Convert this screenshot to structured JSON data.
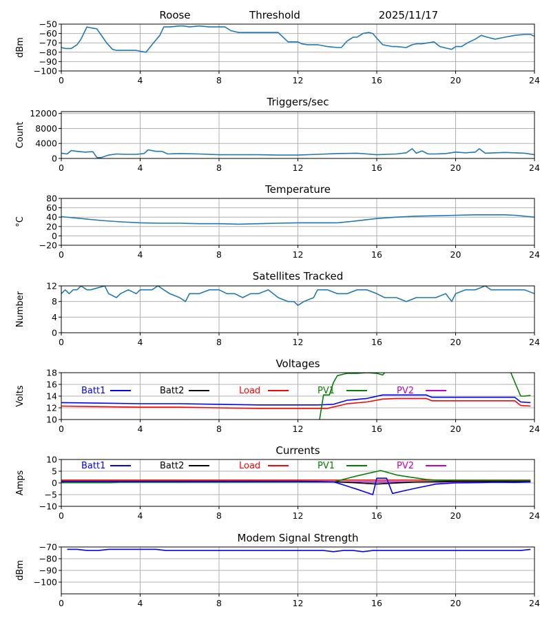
{
  "header": {
    "station": "Roose",
    "mode": "Threshold",
    "date": "2025/11/17"
  },
  "chart_data": [
    {
      "id": "signal",
      "type": "line",
      "title": "",
      "xlabel": "",
      "ylabel": "dBm",
      "xlim": [
        0,
        24
      ],
      "ylim": [
        -100,
        -50
      ],
      "xticks": [
        "0",
        "4",
        "8",
        "12",
        "16",
        "20",
        "24"
      ],
      "yticks": [
        "−50",
        "−60",
        "−70",
        "−80",
        "−90",
        "−100"
      ],
      "ytick_values": [
        -50,
        -60,
        -70,
        -80,
        -90,
        -100
      ],
      "grid": true,
      "series": [
        {
          "name": "signal",
          "color": "#1f77b4",
          "x": [
            0,
            0.2,
            0.5,
            0.8,
            1.0,
            1.3,
            1.5,
            1.8,
            2.0,
            2.3,
            2.6,
            2.8,
            3.0,
            3.5,
            3.8,
            4.0,
            4.3,
            4.6,
            5.0,
            5.2,
            5.5,
            6.0,
            6.2,
            6.5,
            7.0,
            7.5,
            8.0,
            8.3,
            8.6,
            8.8,
            9.0,
            10.0,
            11.0,
            11.3,
            11.5,
            12.0,
            12.2,
            12.5,
            13.0,
            13.5,
            14.0,
            14.2,
            14.5,
            14.8,
            15.0,
            15.3,
            15.6,
            15.8,
            16.0,
            16.3,
            16.8,
            17.0,
            17.5,
            17.8,
            18.0,
            18.3,
            18.6,
            18.9,
            19.2,
            19.6,
            19.8,
            20.0,
            20.3,
            20.6,
            21.0,
            21.3,
            21.6,
            22.0,
            22.5,
            23.0,
            23.5,
            23.8,
            24.0
          ],
          "y": [
            -75,
            -76,
            -76,
            -72,
            -66,
            -53,
            -54,
            -55,
            -61,
            -70,
            -77,
            -78,
            -78,
            -78,
            -78,
            -79,
            -80,
            -72,
            -62,
            -53,
            -53,
            -52,
            -52,
            -53,
            -52,
            -53,
            -53,
            -53,
            -57,
            -58,
            -59,
            -59,
            -59,
            -65,
            -69,
            -69,
            -71,
            -72,
            -72,
            -74,
            -75,
            -75,
            -68,
            -64,
            -64,
            -60,
            -59,
            -60,
            -65,
            -72,
            -74,
            -74,
            -75,
            -72,
            -71,
            -71,
            -70,
            -69,
            -74,
            -76,
            -77,
            -74,
            -74,
            -70,
            -66,
            -62,
            -64,
            -66,
            -64,
            -62,
            -61,
            -61,
            -63
          ]
        }
      ]
    },
    {
      "id": "triggers",
      "type": "line",
      "title": "Triggers/sec",
      "xlabel": "",
      "ylabel": "Count",
      "xlim": [
        0,
        24
      ],
      "ylim": [
        0,
        12500
      ],
      "xticks": [
        "0",
        "4",
        "8",
        "12",
        "16",
        "20",
        "24"
      ],
      "yticks": [
        "12000",
        "8000",
        "4000",
        "0"
      ],
      "ytick_values": [
        12000,
        8000,
        4000,
        0
      ],
      "grid": true,
      "series": [
        {
          "name": "triggers",
          "color": "#1f77b4",
          "x": [
            0,
            0.3,
            0.5,
            0.8,
            1.2,
            1.6,
            1.8,
            2.0,
            2.4,
            2.8,
            3.2,
            3.8,
            4.2,
            4.4,
            4.8,
            5.1,
            5.4,
            6.0,
            7.0,
            8.0,
            9.0,
            10.0,
            11.0,
            12.0,
            13.0,
            14.0,
            15.0,
            15.5,
            16.0,
            16.5,
            17.0,
            17.5,
            17.8,
            18.0,
            18.3,
            18.6,
            19.0,
            19.5,
            20.0,
            20.5,
            21.0,
            21.2,
            21.5,
            22.0,
            22.5,
            23.0,
            23.5,
            24.0
          ],
          "y": [
            1400,
            1200,
            2100,
            1900,
            1700,
            1800,
            300,
            200,
            900,
            1200,
            1100,
            1100,
            1300,
            2300,
            1900,
            1900,
            1200,
            1300,
            1200,
            1000,
            1000,
            1000,
            900,
            900,
            1100,
            1300,
            1400,
            1200,
            1000,
            1100,
            1200,
            1500,
            2600,
            1400,
            2000,
            1200,
            1200,
            1300,
            1700,
            1500,
            1700,
            2600,
            1400,
            1500,
            1600,
            1500,
            1400,
            1000
          ]
        }
      ]
    },
    {
      "id": "temperature",
      "type": "line",
      "title": "Temperature",
      "xlabel": "",
      "ylabel": "°C",
      "xlim": [
        0,
        24
      ],
      "ylim": [
        -20,
        80
      ],
      "xticks": [
        "0",
        "4",
        "8",
        "12",
        "16",
        "20",
        "24"
      ],
      "yticks": [
        "80",
        "60",
        "40",
        "20",
        "0",
        "−20"
      ],
      "ytick_values": [
        80,
        60,
        40,
        20,
        0,
        -20
      ],
      "grid": true,
      "series": [
        {
          "name": "temperature",
          "color": "#1f77b4",
          "x": [
            0,
            1,
            2,
            3,
            4,
            5,
            6,
            7,
            8,
            9,
            10,
            11,
            12,
            13,
            14,
            15,
            16,
            17,
            18,
            19,
            20,
            21,
            22,
            22.5,
            23,
            24
          ],
          "y": [
            41,
            37,
            33,
            30,
            28,
            27,
            27,
            26,
            26,
            25,
            26,
            27,
            28,
            28,
            28,
            32,
            37,
            40,
            42,
            43,
            44,
            45,
            45,
            45,
            44,
            40
          ]
        }
      ]
    },
    {
      "id": "satellites",
      "type": "line",
      "title": "Satellites Tracked",
      "xlabel": "",
      "ylabel": "Number",
      "xlim": [
        0,
        24
      ],
      "ylim": [
        0,
        12
      ],
      "xticks": [
        "0",
        "4",
        "8",
        "12",
        "16",
        "20",
        "24"
      ],
      "yticks": [
        "12",
        "8",
        "4",
        "0"
      ],
      "ytick_values": [
        12,
        8,
        4,
        0
      ],
      "grid": true,
      "series": [
        {
          "name": "satellites",
          "color": "#1f77b4",
          "x": [
            0,
            0.2,
            0.4,
            0.6,
            0.8,
            1.0,
            1.3,
            1.5,
            2.2,
            2.4,
            2.8,
            3.0,
            3.4,
            3.8,
            4.0,
            4.6,
            4.9,
            5.2,
            5.5,
            6.0,
            6.3,
            6.5,
            7.0,
            7.5,
            8.0,
            8.4,
            8.8,
            9.2,
            9.6,
            10.0,
            10.5,
            11.0,
            11.5,
            11.8,
            12.0,
            12.3,
            12.8,
            13.0,
            13.5,
            14.0,
            14.5,
            15.0,
            15.5,
            16.0,
            16.4,
            17.0,
            17.5,
            18.0,
            18.5,
            19.0,
            19.5,
            19.8,
            20.0,
            20.5,
            21.0,
            21.5,
            21.8,
            22.2,
            22.5,
            23.0,
            23.5,
            24.0
          ],
          "y": [
            10,
            11,
            10,
            11,
            11,
            12,
            11,
            11,
            12,
            10,
            9,
            10,
            11,
            10,
            11,
            11,
            12,
            11,
            10,
            9,
            8,
            10,
            10,
            11,
            11,
            10,
            10,
            9,
            10,
            10,
            11,
            9,
            8,
            8,
            7,
            8,
            9,
            11,
            11,
            10,
            10,
            11,
            11,
            10,
            9,
            9,
            8,
            9,
            9,
            9,
            10,
            8,
            10,
            11,
            11,
            12,
            11,
            11,
            11,
            11,
            11,
            10
          ]
        }
      ]
    },
    {
      "id": "voltages",
      "type": "line",
      "title": "Voltages",
      "xlabel": "",
      "ylabel": "Volts",
      "xlim": [
        0,
        24
      ],
      "ylim": [
        10,
        18
      ],
      "xticks": [
        "0",
        "4",
        "8",
        "12",
        "16",
        "20",
        "24"
      ],
      "yticks": [
        "18",
        "16",
        "14",
        "12",
        "10"
      ],
      "ytick_values": [
        18,
        16,
        14,
        12,
        10
      ],
      "grid": true,
      "legend": [
        "Batt1",
        "Batt2",
        "Load",
        "PV1",
        "PV2"
      ],
      "series": [
        {
          "name": "Batt1",
          "color": "#0000ff",
          "x": [
            0,
            2,
            4,
            6,
            8,
            10,
            12,
            13,
            13.8,
            14.5,
            15.5,
            16.3,
            17,
            18,
            18.5,
            18.8,
            20,
            22,
            23,
            23.3,
            23.8
          ],
          "y": [
            12.9,
            12.8,
            12.7,
            12.7,
            12.6,
            12.5,
            12.5,
            12.5,
            12.6,
            13.3,
            13.6,
            14.2,
            14.2,
            14.2,
            14.2,
            13.8,
            13.8,
            13.8,
            13.8,
            13.0,
            12.9
          ]
        },
        {
          "name": "Load",
          "color": "#ff0000",
          "x": [
            0,
            2,
            4,
            6,
            8,
            10,
            12,
            13.5,
            14.5,
            15.5,
            16.3,
            17,
            18,
            18.5,
            18.8,
            20,
            22,
            23,
            23.3,
            23.8
          ],
          "y": [
            12.3,
            12.2,
            12.1,
            12.1,
            12.0,
            11.9,
            11.9,
            11.9,
            12.7,
            13.0,
            13.5,
            13.6,
            13.6,
            13.6,
            13.2,
            13.2,
            13.2,
            13.2,
            12.4,
            12.3
          ]
        },
        {
          "name": "PV1",
          "color": "#008000",
          "x": [
            13.1,
            13.3,
            13.6,
            13.8,
            14.0,
            14.5,
            15.0,
            15.5,
            16.0,
            16.3,
            16.4
          ],
          "y": [
            10.0,
            14.2,
            14.2,
            16.3,
            17.5,
            17.9,
            17.9,
            18.0,
            17.9,
            17.6,
            18.0
          ]
        },
        {
          "name": "PV1",
          "color": "#008000",
          "x": [
            22.8,
            23.3,
            23.5,
            23.8
          ],
          "y": [
            18.0,
            14.0,
            14.0,
            14.1
          ]
        }
      ]
    },
    {
      "id": "currents",
      "type": "line",
      "title": "Currents",
      "xlabel": "",
      "ylabel": "Amps",
      "xlim": [
        0,
        24
      ],
      "ylim": [
        -10,
        10
      ],
      "xticks": [
        "0",
        "4",
        "8",
        "12",
        "16",
        "20",
        "24"
      ],
      "yticks": [
        "10",
        "5",
        "0",
        "−5",
        "−10"
      ],
      "ytick_values": [
        10,
        5,
        0,
        -5,
        -10
      ],
      "grid": true,
      "legend": [
        "Batt1",
        "Batt2",
        "Load",
        "PV1",
        "PV2"
      ],
      "series": [
        {
          "name": "PV2",
          "color": "#bf00bf",
          "x": [
            0,
            4,
            8,
            12,
            16,
            20,
            23.8
          ],
          "y": [
            0.4,
            0.4,
            0.4,
            0.4,
            0.4,
            0.4,
            0.4
          ]
        },
        {
          "name": "Batt2",
          "color": "#000000",
          "x": [
            0,
            4,
            8,
            12,
            14,
            16,
            18,
            20,
            23.8
          ],
          "y": [
            0.7,
            0.7,
            0.7,
            0.7,
            0.5,
            -0.5,
            0.4,
            0.7,
            0.7
          ]
        },
        {
          "name": "Load",
          "color": "#ff0000",
          "x": [
            0,
            4,
            8,
            12,
            16,
            20,
            23.8
          ],
          "y": [
            1.2,
            1.2,
            1.2,
            1.2,
            1.2,
            1.2,
            1.2
          ]
        },
        {
          "name": "PV1",
          "color": "#008000",
          "x": [
            0,
            2.5,
            3,
            13.8,
            15,
            16.2,
            17,
            17.6,
            18.5,
            19,
            20,
            23.8
          ],
          "y": [
            0.1,
            0.1,
            0.3,
            0.4,
            3.0,
            5.3,
            3.4,
            2.6,
            1.5,
            1.2,
            1.1,
            1.0
          ]
        },
        {
          "name": "Batt1",
          "color": "#0000ff",
          "x": [
            0,
            4,
            8,
            12,
            13.8,
            15.0,
            15.8,
            16.0,
            16.5,
            16.8,
            17.2,
            18,
            19,
            20,
            21,
            22,
            23,
            23.8
          ],
          "y": [
            0.6,
            0.6,
            0.6,
            0.6,
            0.5,
            -2.7,
            -5.0,
            2.0,
            2.0,
            -4.5,
            -3.7,
            -2.2,
            -0.5,
            0.0,
            0.1,
            0.3,
            0.2,
            0.4
          ]
        }
      ]
    },
    {
      "id": "modem",
      "type": "line",
      "title": "Modem Signal Strength",
      "xlabel": "",
      "ylabel": "dBm",
      "xlim": [
        0,
        24
      ],
      "ylim": [
        -110,
        -70
      ],
      "xticks": [
        "0",
        "4",
        "8",
        "12",
        "16",
        "20",
        "24"
      ],
      "yticks": [
        "−70",
        "−80",
        "−90",
        "−100"
      ],
      "ytick_values": [
        -70,
        -80,
        -90,
        -100
      ],
      "grid": true,
      "series": [
        {
          "name": "modem",
          "color": "#0000ff",
          "x": [
            0.3,
            0.8,
            1.3,
            1.9,
            2.4,
            3.0,
            4.0,
            4.8,
            5.3,
            8.0,
            12.0,
            13.3,
            13.8,
            14.3,
            14.8,
            15.3,
            15.8,
            20.0,
            23.3,
            23.8
          ],
          "y": [
            -72,
            -72,
            -73,
            -73,
            -72,
            -72,
            -72,
            -72,
            -73,
            -73,
            -73,
            -73,
            -74,
            -73,
            -73,
            -74,
            -73,
            -73,
            -73,
            -72
          ]
        }
      ]
    }
  ],
  "legend_colors": {
    "Batt1": "#0000ff",
    "Batt2": "#000000",
    "Load": "#ff0000",
    "PV1": "#008000",
    "PV2": "#bf00bf"
  }
}
